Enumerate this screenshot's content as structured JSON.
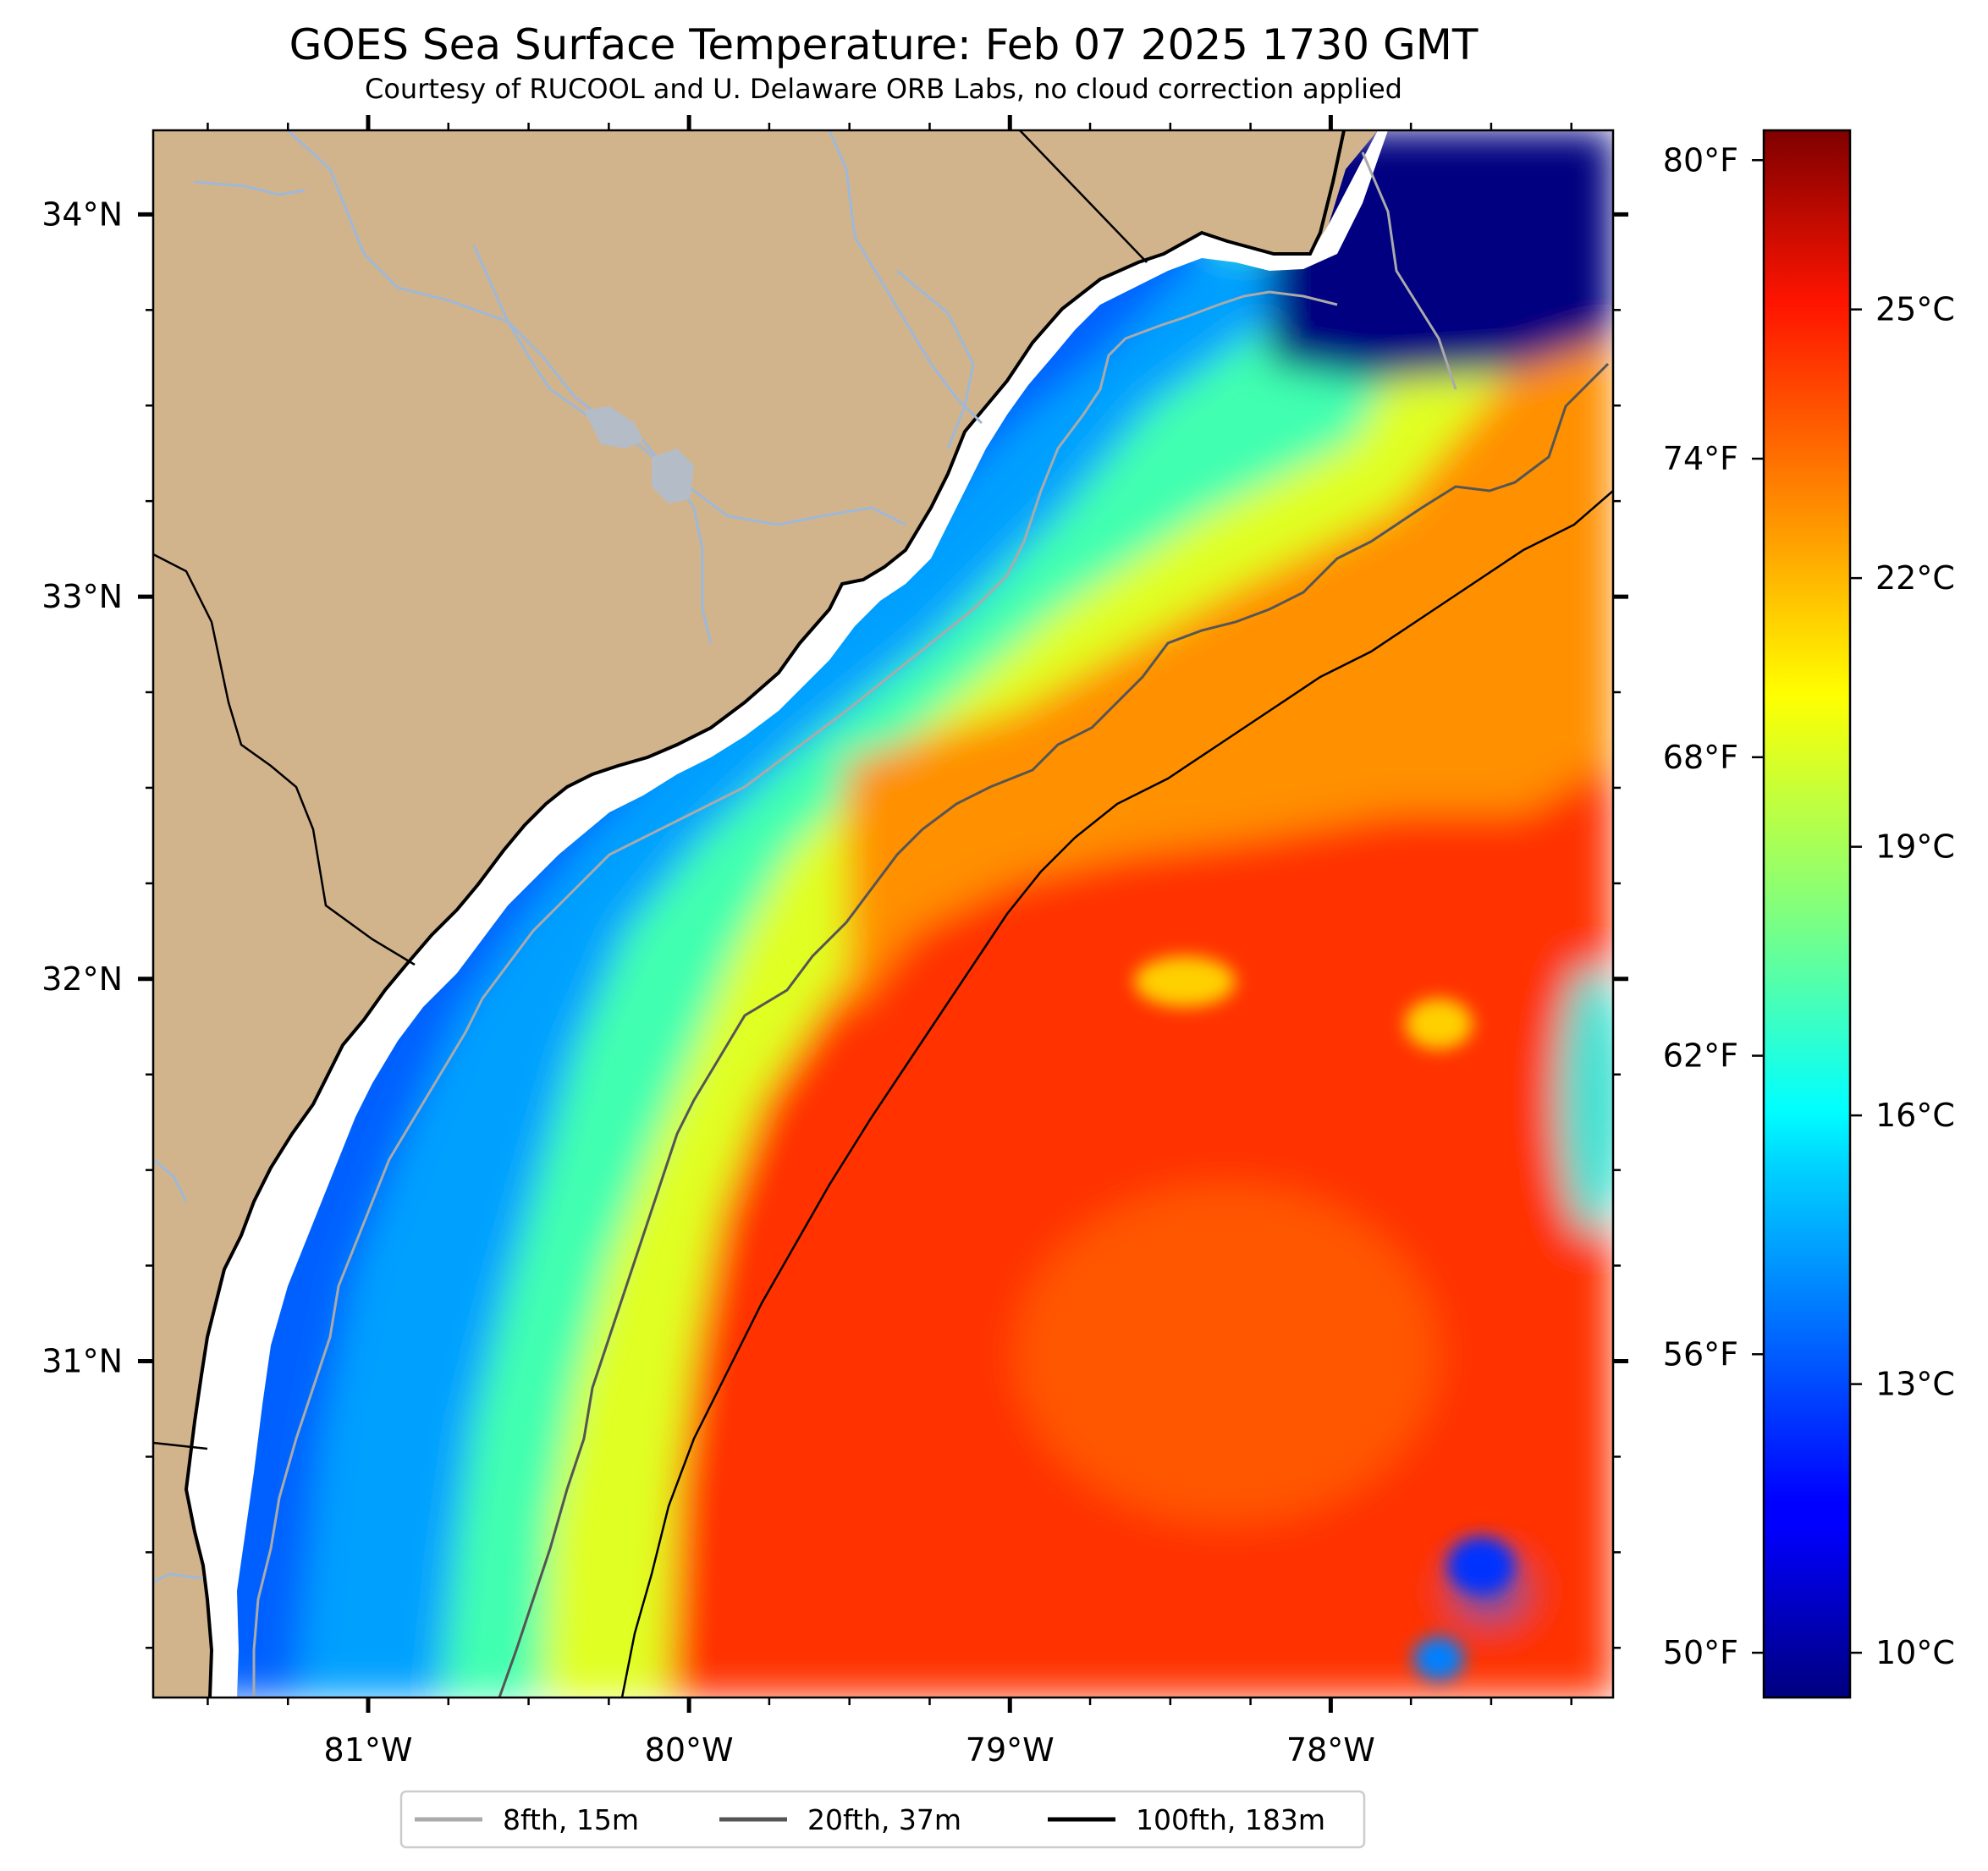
{
  "title": "GOES Sea Surface Temperature: Feb 07 2025 1730 GMT",
  "subtitle": "Courtesy of RUCOOL and U. Delaware ORB Labs, no cloud correction applied",
  "map": {
    "lon_range": [
      -81.67,
      -77.12
    ],
    "lat_range": [
      30.12,
      34.22
    ],
    "lon_ticks": [
      {
        "value": -81,
        "label": "81°W"
      },
      {
        "value": -80,
        "label": "80°W"
      },
      {
        "value": -79,
        "label": "79°W"
      },
      {
        "value": -78,
        "label": "78°W"
      }
    ],
    "lat_ticks": [
      {
        "value": 34,
        "label": "34°N"
      },
      {
        "value": 33,
        "label": "33°N"
      },
      {
        "value": 32,
        "label": "32°N"
      },
      {
        "value": 31,
        "label": "31°N"
      }
    ],
    "land_color": "#d2b48c",
    "river_color": "#9eb8d8"
  },
  "colorbar": {
    "colormap": "jet",
    "c_range": [
      9.5,
      27.0
    ],
    "celsius_ticks": [
      {
        "value": 25,
        "label": "25°C"
      },
      {
        "value": 22,
        "label": "22°C"
      },
      {
        "value": 19,
        "label": "19°C"
      },
      {
        "value": 16,
        "label": "16°C"
      },
      {
        "value": 13,
        "label": "13°C"
      },
      {
        "value": 10,
        "label": "10°C"
      }
    ],
    "fahrenheit_ticks": [
      {
        "value": 80,
        "label": "80°F"
      },
      {
        "value": 74,
        "label": "74°F"
      },
      {
        "value": 68,
        "label": "68°F"
      },
      {
        "value": 62,
        "label": "62°F"
      },
      {
        "value": 56,
        "label": "56°F"
      },
      {
        "value": 50,
        "label": "50°F"
      }
    ]
  },
  "legend": [
    {
      "label": "8fth, 15m",
      "color": "#aaaaaa"
    },
    {
      "label": "20fth, 37m",
      "color": "#555555"
    },
    {
      "label": "100fth, 183m",
      "color": "#000000"
    }
  ]
}
